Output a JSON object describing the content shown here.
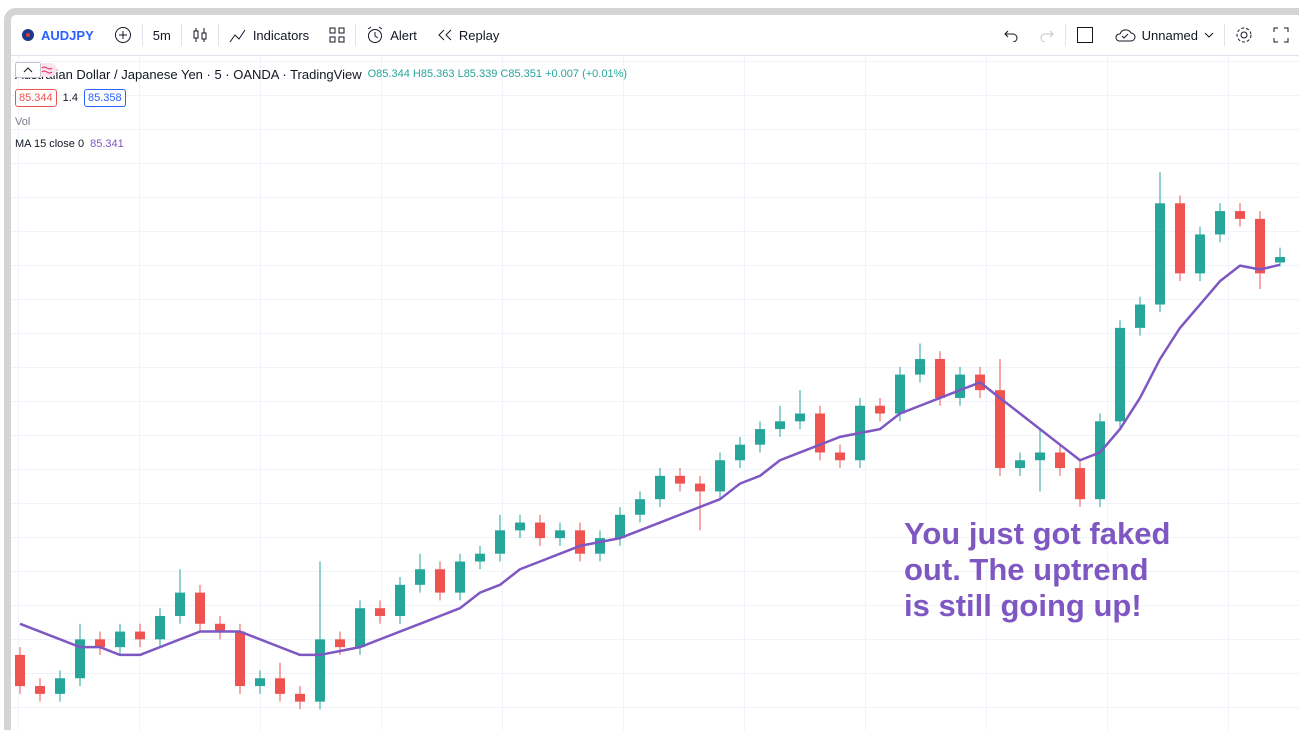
{
  "toolbar": {
    "symbol": "AUDJPY",
    "interval": "5m",
    "indicators": "Indicators",
    "alert": "Alert",
    "replay": "Replay",
    "layout": "Unnamed"
  },
  "legend": {
    "title": "Australian Dollar / Japanese Yen · 5 · OANDA · TradingView",
    "ohlc_labels": [
      "O",
      "H",
      "L",
      "C"
    ],
    "change": "+0.007",
    "change_pct": "(+0.01%)",
    "bid": 85.344,
    "spread": 1.4,
    "ask": 85.358,
    "volume": "Vol"
  },
  "annotation": [
    "You just got faked",
    "out. The uptrend",
    "is still going up!"
  ],
  "chart_data": {
    "type": "candlestick",
    "up_color": "#26a69a",
    "down_color": "#ef5350",
    "ma_name": "MA 15 close 0",
    "ma_color": "#7e57c2",
    "ylim": [
      84.75,
      85.5
    ],
    "open": [
      84.84,
      84.8,
      84.79,
      84.81,
      84.86,
      84.85,
      84.87,
      84.86,
      84.89,
      84.92,
      84.88,
      84.87,
      84.8,
      84.81,
      84.79,
      84.78,
      84.86,
      84.85,
      84.9,
      84.89,
      84.93,
      84.95,
      84.92,
      84.96,
      84.97,
      85.0,
      85.01,
      84.99,
      85.0,
      84.97,
      84.99,
      85.02,
      85.04,
      85.07,
      85.06,
      85.05,
      85.09,
      85.11,
      85.13,
      85.14,
      85.15,
      85.1,
      85.09,
      85.16,
      85.15,
      85.2,
      85.22,
      85.17,
      85.2,
      85.18,
      85.08,
      85.09,
      85.1,
      85.08,
      85.04,
      85.14,
      85.26,
      85.29,
      85.42,
      85.33,
      85.38,
      85.41,
      85.4,
      85.344
    ],
    "high": [
      84.85,
      84.81,
      84.82,
      84.88,
      84.87,
      84.88,
      84.88,
      84.9,
      84.95,
      84.93,
      84.89,
      84.88,
      84.82,
      84.83,
      84.8,
      84.96,
      84.87,
      84.91,
      84.91,
      84.94,
      84.97,
      84.96,
      84.97,
      84.98,
      85.02,
      85.02,
      85.02,
      85.01,
      85.01,
      85.0,
      85.03,
      85.05,
      85.08,
      85.08,
      85.07,
      85.1,
      85.12,
      85.14,
      85.16,
      85.18,
      85.16,
      85.11,
      85.17,
      85.17,
      85.21,
      85.24,
      85.23,
      85.21,
      85.21,
      85.22,
      85.1,
      85.13,
      85.11,
      85.09,
      85.15,
      85.27,
      85.3,
      85.46,
      85.43,
      85.39,
      85.42,
      85.42,
      85.41,
      85.363
    ],
    "low": [
      84.79,
      84.78,
      84.78,
      84.8,
      84.84,
      84.84,
      84.85,
      84.85,
      84.88,
      84.87,
      84.86,
      84.79,
      84.79,
      84.78,
      84.77,
      84.77,
      84.84,
      84.84,
      84.88,
      84.88,
      84.92,
      84.91,
      84.91,
      84.95,
      84.96,
      84.99,
      84.98,
      84.98,
      84.96,
      84.96,
      84.98,
      85.01,
      85.03,
      85.05,
      85.0,
      85.04,
      85.08,
      85.1,
      85.12,
      85.13,
      85.09,
      85.08,
      85.08,
      85.14,
      85.14,
      85.19,
      85.16,
      85.16,
      85.17,
      85.07,
      85.07,
      85.05,
      85.07,
      85.03,
      85.03,
      85.13,
      85.25,
      85.28,
      85.32,
      85.32,
      85.37,
      85.39,
      85.31,
      85.339
    ],
    "close": [
      84.8,
      84.79,
      84.81,
      84.86,
      84.85,
      84.87,
      84.86,
      84.89,
      84.92,
      84.88,
      84.87,
      84.8,
      84.81,
      84.79,
      84.78,
      84.86,
      84.85,
      84.9,
      84.89,
      84.93,
      84.95,
      84.92,
      84.96,
      84.97,
      85.0,
      85.01,
      84.99,
      85.0,
      84.97,
      84.99,
      85.02,
      85.04,
      85.07,
      85.06,
      85.05,
      85.09,
      85.11,
      85.13,
      85.14,
      85.15,
      85.1,
      85.09,
      85.16,
      85.15,
      85.2,
      85.22,
      85.17,
      85.2,
      85.18,
      85.08,
      85.09,
      85.1,
      85.08,
      85.04,
      85.14,
      85.26,
      85.29,
      85.42,
      85.33,
      85.38,
      85.41,
      85.4,
      85.33,
      85.351
    ],
    "ma": [
      84.88,
      84.87,
      84.86,
      84.85,
      84.85,
      84.84,
      84.84,
      84.85,
      84.86,
      84.87,
      84.87,
      84.87,
      84.86,
      84.85,
      84.84,
      84.84,
      84.845,
      84.85,
      84.86,
      84.87,
      84.88,
      84.89,
      84.9,
      84.92,
      84.93,
      84.95,
      84.96,
      84.97,
      84.98,
      84.985,
      84.99,
      85.0,
      85.01,
      85.02,
      85.03,
      85.04,
      85.06,
      85.07,
      85.09,
      85.1,
      85.11,
      85.12,
      85.125,
      85.13,
      85.15,
      85.16,
      85.17,
      85.18,
      85.19,
      85.17,
      85.15,
      85.13,
      85.11,
      85.09,
      85.1,
      85.13,
      85.17,
      85.22,
      85.26,
      85.29,
      85.32,
      85.34,
      85.335,
      85.341
    ]
  }
}
